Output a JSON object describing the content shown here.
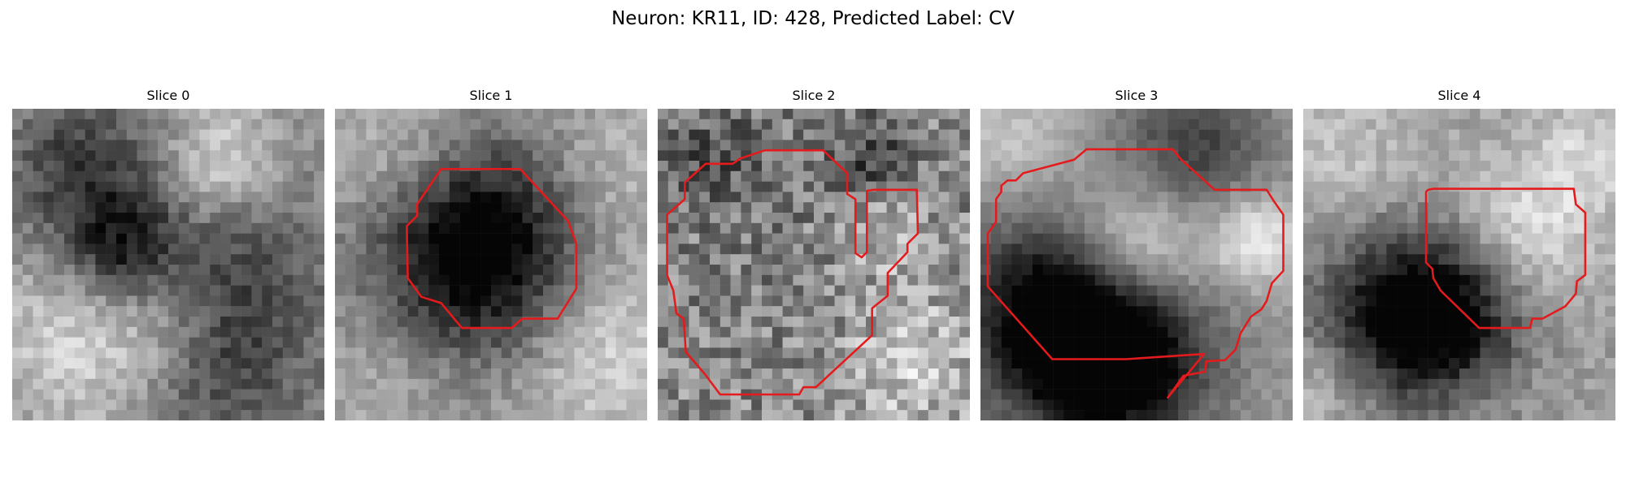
{
  "figure": {
    "title": "Neuron: KR11, ID: 428, Predicted Label: CV"
  },
  "panels": [
    {
      "title": "Slice 0"
    },
    {
      "title": "Slice 1"
    },
    {
      "title": "Slice 2"
    },
    {
      "title": "Slice 3"
    },
    {
      "title": "Slice 4"
    }
  ],
  "colors": {
    "contour": "#e41a1c",
    "background": "#ffffff"
  }
}
